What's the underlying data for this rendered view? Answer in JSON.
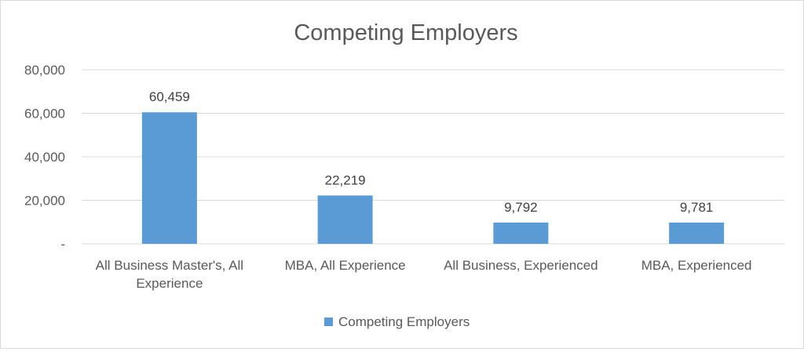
{
  "chart_data": {
    "type": "bar",
    "title": "Competing Employers",
    "categories": [
      [
        "All Business Master's, All",
        "Experience"
      ],
      [
        "MBA, All Experience"
      ],
      [
        "All Business, Experienced"
      ],
      [
        "MBA, Experienced"
      ]
    ],
    "series": [
      {
        "name": "Competing Employers",
        "values": [
          60459,
          22219,
          9792,
          9781
        ],
        "labels": [
          "60,459",
          "22,219",
          "9,792",
          "9,781"
        ],
        "color": "#5b9bd5"
      }
    ],
    "ylim": [
      0,
      80000
    ],
    "yticks": [
      {
        "value": 0,
        "label": "-"
      },
      {
        "value": 20000,
        "label": "20,000"
      },
      {
        "value": 40000,
        "label": "40,000"
      },
      {
        "value": 60000,
        "label": "60,000"
      },
      {
        "value": 80000,
        "label": "80,000"
      }
    ],
    "grid": true,
    "legend": "bottom",
    "gridColor": "#d9d9d9",
    "textColor": "#595959"
  }
}
